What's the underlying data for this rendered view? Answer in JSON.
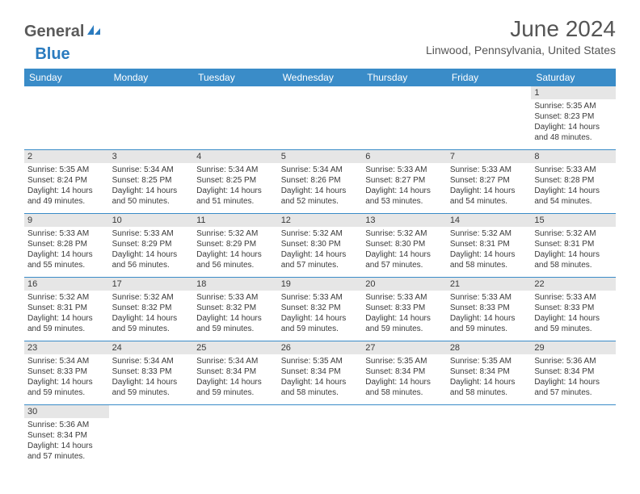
{
  "logo": {
    "part1": "General",
    "part2": "Blue"
  },
  "title": "June 2024",
  "location": "Linwood, Pennsylvania, United States",
  "colors": {
    "header_bg": "#3a8cc8",
    "header_text": "#ffffff",
    "daynum_bg": "#e6e6e6",
    "border": "#3a8cc8",
    "text": "#3a3a3a",
    "logo_accent": "#2a7bbf"
  },
  "typography": {
    "title_fontsize": 28,
    "subtitle_fontsize": 14,
    "day_header_fontsize": 12,
    "cell_fontsize": 10
  },
  "weekdays": [
    "Sunday",
    "Monday",
    "Tuesday",
    "Wednesday",
    "Thursday",
    "Friday",
    "Saturday"
  ],
  "weeks": [
    [
      null,
      null,
      null,
      null,
      null,
      null,
      {
        "n": "1",
        "sr": "Sunrise: 5:35 AM",
        "ss": "Sunset: 8:23 PM",
        "d1": "Daylight: 14 hours",
        "d2": "and 48 minutes."
      }
    ],
    [
      {
        "n": "2",
        "sr": "Sunrise: 5:35 AM",
        "ss": "Sunset: 8:24 PM",
        "d1": "Daylight: 14 hours",
        "d2": "and 49 minutes."
      },
      {
        "n": "3",
        "sr": "Sunrise: 5:34 AM",
        "ss": "Sunset: 8:25 PM",
        "d1": "Daylight: 14 hours",
        "d2": "and 50 minutes."
      },
      {
        "n": "4",
        "sr": "Sunrise: 5:34 AM",
        "ss": "Sunset: 8:25 PM",
        "d1": "Daylight: 14 hours",
        "d2": "and 51 minutes."
      },
      {
        "n": "5",
        "sr": "Sunrise: 5:34 AM",
        "ss": "Sunset: 8:26 PM",
        "d1": "Daylight: 14 hours",
        "d2": "and 52 minutes."
      },
      {
        "n": "6",
        "sr": "Sunrise: 5:33 AM",
        "ss": "Sunset: 8:27 PM",
        "d1": "Daylight: 14 hours",
        "d2": "and 53 minutes."
      },
      {
        "n": "7",
        "sr": "Sunrise: 5:33 AM",
        "ss": "Sunset: 8:27 PM",
        "d1": "Daylight: 14 hours",
        "d2": "and 54 minutes."
      },
      {
        "n": "8",
        "sr": "Sunrise: 5:33 AM",
        "ss": "Sunset: 8:28 PM",
        "d1": "Daylight: 14 hours",
        "d2": "and 54 minutes."
      }
    ],
    [
      {
        "n": "9",
        "sr": "Sunrise: 5:33 AM",
        "ss": "Sunset: 8:28 PM",
        "d1": "Daylight: 14 hours",
        "d2": "and 55 minutes."
      },
      {
        "n": "10",
        "sr": "Sunrise: 5:33 AM",
        "ss": "Sunset: 8:29 PM",
        "d1": "Daylight: 14 hours",
        "d2": "and 56 minutes."
      },
      {
        "n": "11",
        "sr": "Sunrise: 5:32 AM",
        "ss": "Sunset: 8:29 PM",
        "d1": "Daylight: 14 hours",
        "d2": "and 56 minutes."
      },
      {
        "n": "12",
        "sr": "Sunrise: 5:32 AM",
        "ss": "Sunset: 8:30 PM",
        "d1": "Daylight: 14 hours",
        "d2": "and 57 minutes."
      },
      {
        "n": "13",
        "sr": "Sunrise: 5:32 AM",
        "ss": "Sunset: 8:30 PM",
        "d1": "Daylight: 14 hours",
        "d2": "and 57 minutes."
      },
      {
        "n": "14",
        "sr": "Sunrise: 5:32 AM",
        "ss": "Sunset: 8:31 PM",
        "d1": "Daylight: 14 hours",
        "d2": "and 58 minutes."
      },
      {
        "n": "15",
        "sr": "Sunrise: 5:32 AM",
        "ss": "Sunset: 8:31 PM",
        "d1": "Daylight: 14 hours",
        "d2": "and 58 minutes."
      }
    ],
    [
      {
        "n": "16",
        "sr": "Sunrise: 5:32 AM",
        "ss": "Sunset: 8:31 PM",
        "d1": "Daylight: 14 hours",
        "d2": "and 59 minutes."
      },
      {
        "n": "17",
        "sr": "Sunrise: 5:32 AM",
        "ss": "Sunset: 8:32 PM",
        "d1": "Daylight: 14 hours",
        "d2": "and 59 minutes."
      },
      {
        "n": "18",
        "sr": "Sunrise: 5:33 AM",
        "ss": "Sunset: 8:32 PM",
        "d1": "Daylight: 14 hours",
        "d2": "and 59 minutes."
      },
      {
        "n": "19",
        "sr": "Sunrise: 5:33 AM",
        "ss": "Sunset: 8:32 PM",
        "d1": "Daylight: 14 hours",
        "d2": "and 59 minutes."
      },
      {
        "n": "20",
        "sr": "Sunrise: 5:33 AM",
        "ss": "Sunset: 8:33 PM",
        "d1": "Daylight: 14 hours",
        "d2": "and 59 minutes."
      },
      {
        "n": "21",
        "sr": "Sunrise: 5:33 AM",
        "ss": "Sunset: 8:33 PM",
        "d1": "Daylight: 14 hours",
        "d2": "and 59 minutes."
      },
      {
        "n": "22",
        "sr": "Sunrise: 5:33 AM",
        "ss": "Sunset: 8:33 PM",
        "d1": "Daylight: 14 hours",
        "d2": "and 59 minutes."
      }
    ],
    [
      {
        "n": "23",
        "sr": "Sunrise: 5:34 AM",
        "ss": "Sunset: 8:33 PM",
        "d1": "Daylight: 14 hours",
        "d2": "and 59 minutes."
      },
      {
        "n": "24",
        "sr": "Sunrise: 5:34 AM",
        "ss": "Sunset: 8:33 PM",
        "d1": "Daylight: 14 hours",
        "d2": "and 59 minutes."
      },
      {
        "n": "25",
        "sr": "Sunrise: 5:34 AM",
        "ss": "Sunset: 8:34 PM",
        "d1": "Daylight: 14 hours",
        "d2": "and 59 minutes."
      },
      {
        "n": "26",
        "sr": "Sunrise: 5:35 AM",
        "ss": "Sunset: 8:34 PM",
        "d1": "Daylight: 14 hours",
        "d2": "and 58 minutes."
      },
      {
        "n": "27",
        "sr": "Sunrise: 5:35 AM",
        "ss": "Sunset: 8:34 PM",
        "d1": "Daylight: 14 hours",
        "d2": "and 58 minutes."
      },
      {
        "n": "28",
        "sr": "Sunrise: 5:35 AM",
        "ss": "Sunset: 8:34 PM",
        "d1": "Daylight: 14 hours",
        "d2": "and 58 minutes."
      },
      {
        "n": "29",
        "sr": "Sunrise: 5:36 AM",
        "ss": "Sunset: 8:34 PM",
        "d1": "Daylight: 14 hours",
        "d2": "and 57 minutes."
      }
    ],
    [
      {
        "n": "30",
        "sr": "Sunrise: 5:36 AM",
        "ss": "Sunset: 8:34 PM",
        "d1": "Daylight: 14 hours",
        "d2": "and 57 minutes."
      },
      null,
      null,
      null,
      null,
      null,
      null
    ]
  ]
}
